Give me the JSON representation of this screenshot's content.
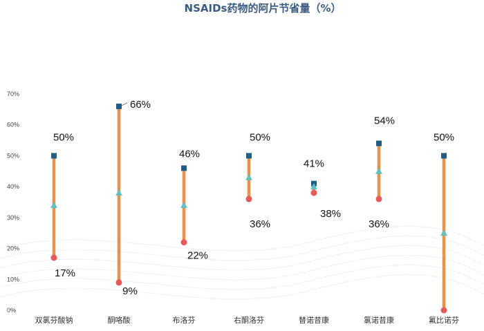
{
  "chart_data": {
    "type": "dot-range",
    "title": "NSAIDs药物的阿片节省量（%）",
    "ylim": [
      0,
      70
    ],
    "yticks": [
      "0%",
      "10%",
      "20%",
      "30%",
      "40%",
      "50%",
      "60%",
      "70%"
    ],
    "grid": false,
    "categories": [
      "双氯芬酸钠",
      "酮咯酸",
      "布洛芬",
      "右酮洛芬",
      "替诺昔康",
      "氯诺昔康",
      "氟比诺芬"
    ],
    "series": [
      {
        "values": [
          50,
          66,
          46,
          50,
          41,
          54,
          50
        ]
      },
      {
        "values": [
          34,
          38,
          34,
          43,
          40,
          45,
          25
        ]
      },
      {
        "values": [
          17,
          9,
          22,
          36,
          38,
          36,
          0
        ]
      }
    ],
    "data_labels": {
      "high": [
        "50%",
        "66%",
        "46%",
        "50%",
        "41%",
        "54%",
        "50%"
      ],
      "low": [
        "17%",
        "9%",
        "22%",
        "36%",
        "38%",
        "36%",
        null
      ]
    },
    "colors": {
      "range_bar": "#e8914a",
      "high_marker": "#1f5f86",
      "mid_marker": "#5fc2c0",
      "low_marker": "#e85a5a",
      "title": "#3d5a80"
    }
  }
}
